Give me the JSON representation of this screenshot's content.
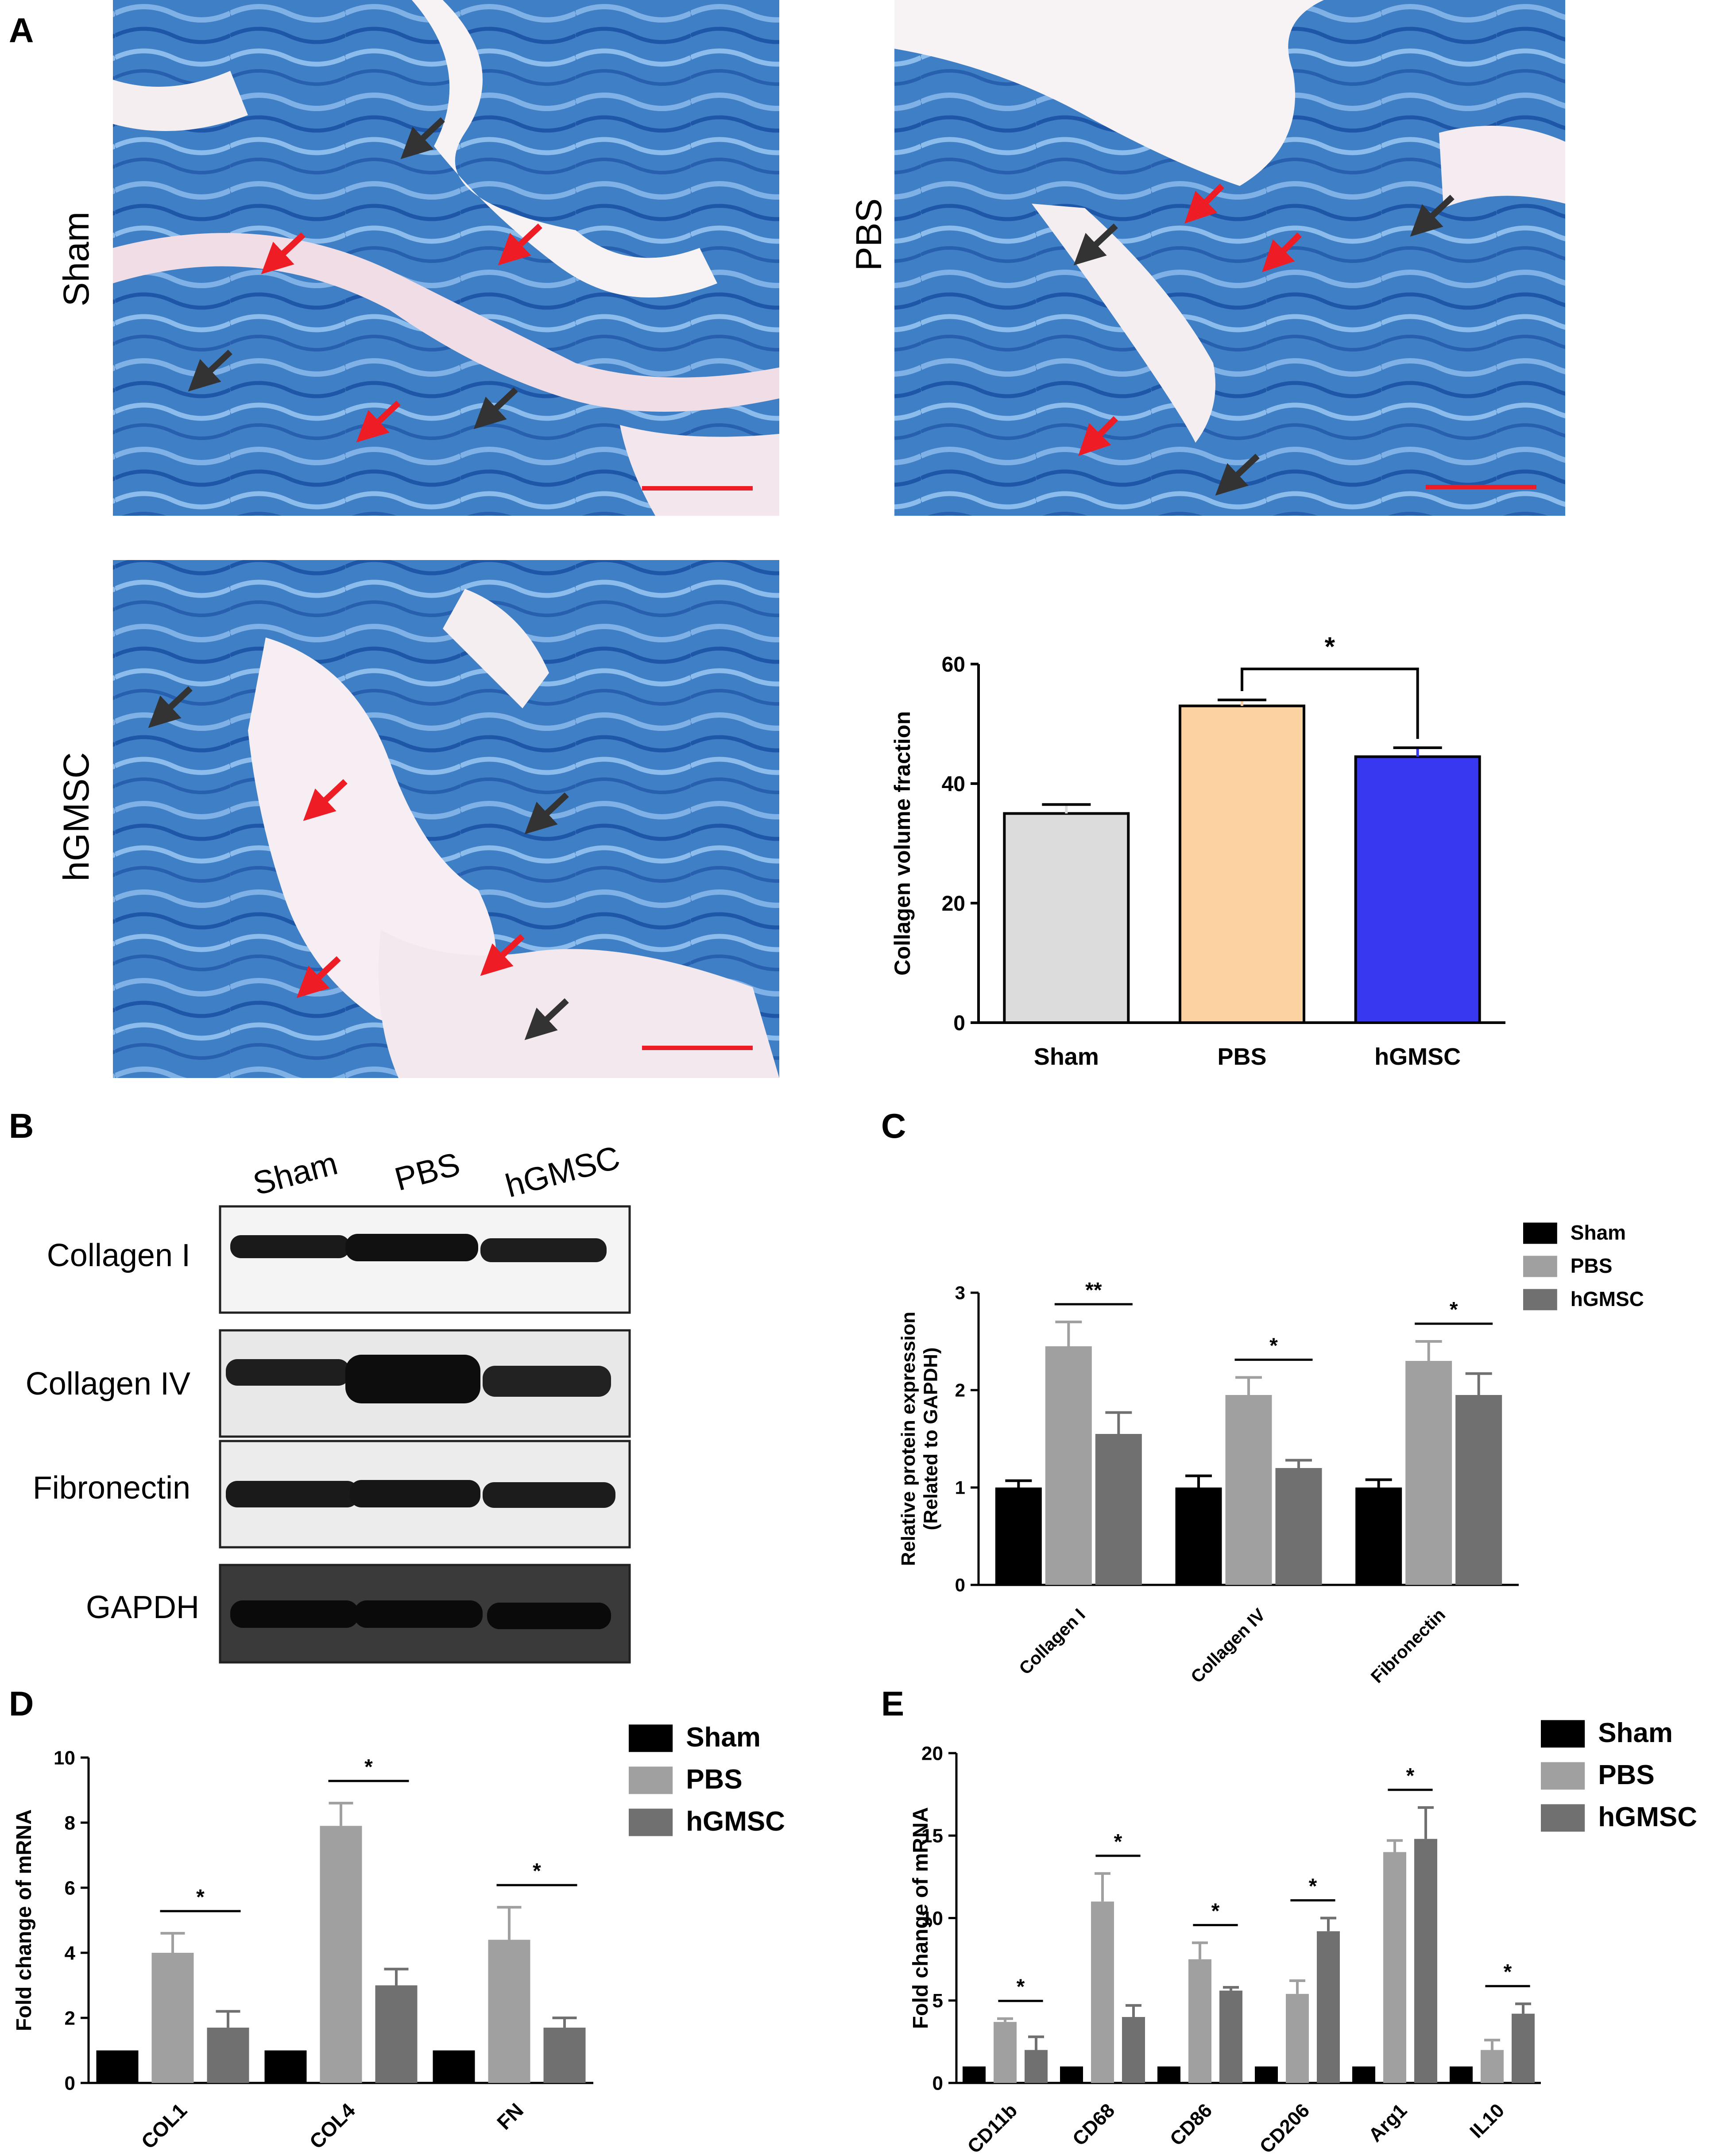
{
  "panel_labels": [
    "A",
    "B",
    "C",
    "D",
    "E"
  ],
  "histology": [
    {
      "label": "Sham"
    },
    {
      "label": "PBS"
    },
    {
      "label": "hGMSC"
    }
  ],
  "western": {
    "lanes": [
      "Sham",
      "PBS",
      "hGMSC"
    ],
    "rows": [
      "Collagen I",
      "Collagen IV",
      "Fibronectin",
      "GAPDH"
    ]
  },
  "colors": {
    "tissue_blue": "#3f7fc6",
    "tissue_pink": "#e8c0d0",
    "arrow_red": "#ee1c24",
    "arrow_dark": "#333333",
    "sham_a": "#dcdcdc",
    "pbs_a": "#fcd2a0",
    "hgmsc_a": "#3838f0",
    "sham": "#000000",
    "pbs": "#a0a0a0",
    "hgmsc": "#707070"
  },
  "chart_data": [
    {
      "panel": "A",
      "type": "bar",
      "categories": [
        "Sham",
        "PBS",
        "hGMSC"
      ],
      "values": [
        35,
        53,
        44.5
      ],
      "errors": [
        1.5,
        1,
        1.5
      ],
      "colors": [
        "#dcdcdc",
        "#fcd2a0",
        "#3838f0"
      ],
      "ylabel": "Collagen volume  fraction",
      "ylim": [
        0,
        60
      ],
      "yticks": [
        0,
        20,
        40,
        60
      ],
      "significance": [
        {
          "from": 1,
          "to": 2,
          "label": "*"
        }
      ]
    },
    {
      "panel": "C",
      "type": "bar",
      "categories": [
        "Collagen I",
        "Collagen IV",
        "Fibronectin"
      ],
      "series": [
        {
          "name": "Sham",
          "values": [
            1.0,
            1.0,
            1.0
          ],
          "errors": [
            0.07,
            0.12,
            0.08
          ]
        },
        {
          "name": "PBS",
          "values": [
            2.45,
            1.95,
            2.3
          ],
          "errors": [
            0.25,
            0.18,
            0.2
          ]
        },
        {
          "name": "hGMSC",
          "values": [
            1.55,
            1.2,
            1.95
          ],
          "errors": [
            0.22,
            0.08,
            0.22
          ]
        }
      ],
      "ylabel": "Relative protein expression\n(Related to GAPDH)",
      "ylim": [
        0,
        3
      ],
      "yticks": [
        0,
        1,
        2,
        3
      ],
      "legend": "top-right",
      "significance": [
        {
          "category": 0,
          "label": "**"
        },
        {
          "category": 1,
          "label": "*"
        },
        {
          "category": 2,
          "label": "*"
        }
      ]
    },
    {
      "panel": "D",
      "type": "bar",
      "categories": [
        "COL1",
        "COL4",
        "FN"
      ],
      "series": [
        {
          "name": "Sham",
          "values": [
            1.0,
            1.0,
            1.0
          ],
          "errors": [
            0,
            0,
            0
          ]
        },
        {
          "name": "PBS",
          "values": [
            4.0,
            7.9,
            4.4
          ],
          "errors": [
            0.6,
            0.7,
            1.0
          ]
        },
        {
          "name": "hGMSC",
          "values": [
            1.7,
            3.0,
            1.7
          ],
          "errors": [
            0.5,
            0.5,
            0.3
          ]
        }
      ],
      "ylabel": "Fold change of mRNA",
      "ylim": [
        0,
        10
      ],
      "yticks": [
        0,
        2,
        4,
        6,
        8,
        10
      ],
      "legend": "top-right",
      "significance": [
        {
          "category": 0,
          "label": "*"
        },
        {
          "category": 1,
          "label": "*"
        },
        {
          "category": 2,
          "label": "*"
        }
      ]
    },
    {
      "panel": "E",
      "type": "bar",
      "categories": [
        "CD11b",
        "CD68",
        "CD86",
        "CD206",
        "Arg1",
        "IL10"
      ],
      "series": [
        {
          "name": "Sham",
          "values": [
            1.0,
            1.0,
            1.0,
            1.0,
            1.0,
            1.0
          ],
          "errors": [
            0,
            0,
            0,
            0,
            0,
            0
          ]
        },
        {
          "name": "PBS",
          "values": [
            3.7,
            11.0,
            7.5,
            5.4,
            14.0,
            2.0
          ],
          "errors": [
            0.2,
            1.7,
            1.0,
            0.8,
            0.7,
            0.6
          ]
        },
        {
          "name": "hGMSC",
          "values": [
            2.0,
            4.0,
            5.6,
            9.2,
            14.8,
            4.2
          ],
          "errors": [
            0.8,
            0.7,
            0.2,
            0.8,
            1.9,
            0.6
          ]
        }
      ],
      "ylabel": "Fold change of mRNA",
      "ylim": [
        0,
        20
      ],
      "yticks": [
        0,
        5,
        10,
        15,
        20
      ],
      "legend": "top-right",
      "significance": [
        {
          "category": 0,
          "label": "*"
        },
        {
          "category": 1,
          "label": "*"
        },
        {
          "category": 2,
          "label": "*"
        },
        {
          "category": 3,
          "label": "*"
        },
        {
          "category": 4,
          "label": "*"
        },
        {
          "category": 5,
          "label": "*"
        }
      ]
    }
  ]
}
